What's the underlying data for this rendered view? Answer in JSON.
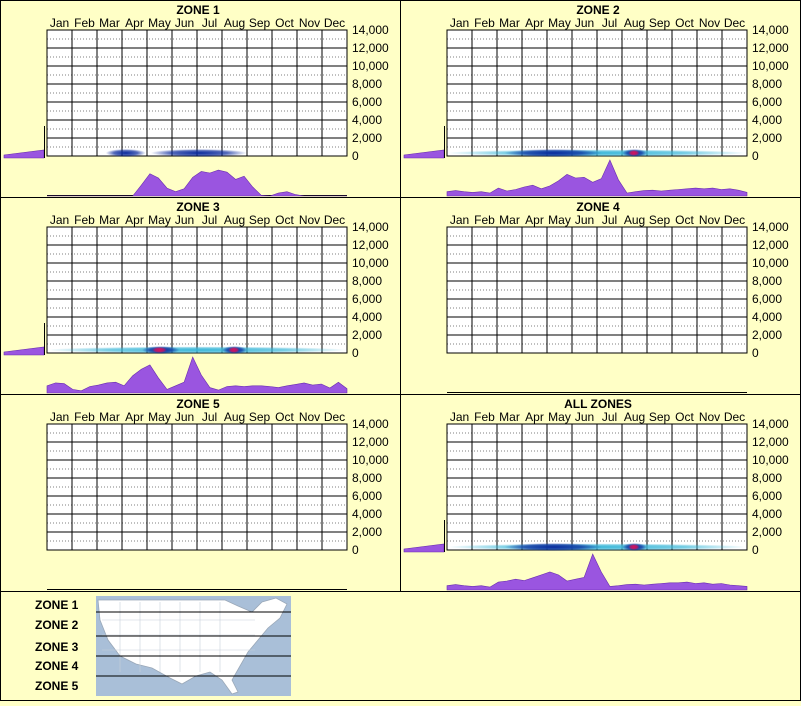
{
  "colors": {
    "background": "#ffffc6",
    "fill_purple": "#9a55e0",
    "heat_blue": "#0a2a9c",
    "heat_cyan": "#3ab7d8",
    "heat_red": "#e0105a",
    "map_water": "#a9bfd8",
    "map_land": "#ffffff"
  },
  "months": [
    "Jan",
    "Feb",
    "Mar",
    "Apr",
    "May",
    "Jun",
    "Jul",
    "Aug",
    "Sep",
    "Oct",
    "Nov",
    "Dec"
  ],
  "elevation_ticks": [
    "14,000",
    "12,000",
    "10,000",
    "8,000",
    "6,000",
    "4,000",
    "2,000",
    "0"
  ],
  "chart_data": [
    {
      "type": "heatmap",
      "title": "ZONE 1",
      "ylim": [
        0,
        14000
      ],
      "x": [
        "Jan",
        "Feb",
        "Mar",
        "Apr",
        "May",
        "Jun",
        "Jul",
        "Aug",
        "Sep",
        "Oct",
        "Nov",
        "Dec"
      ],
      "seasonal_profile": [
        0,
        0,
        0,
        0,
        0,
        0,
        0,
        0,
        0,
        0,
        0,
        0.3,
        0.62,
        0.5,
        0.22,
        0.12,
        0.2,
        0.52,
        0.68,
        0.64,
        0.72,
        0.66,
        0.46,
        0.55,
        0.25,
        0.02,
        0,
        0.08,
        0.12,
        0.04,
        0,
        0,
        0,
        0,
        0,
        0
      ],
      "elevation_profile": [
        0.25,
        0.8,
        1.0,
        0.45,
        0.1,
        0.02,
        0,
        0,
        0,
        0,
        0,
        0,
        0,
        0,
        0
      ],
      "heat_spans": [
        [
          2.35,
          3.95,
          "blue"
        ],
        [
          4.15,
          8.0,
          "blue"
        ]
      ]
    },
    {
      "type": "heatmap",
      "title": "ZONE 2",
      "ylim": [
        0,
        14000
      ],
      "x": [
        "Jan",
        "Feb",
        "Mar",
        "Apr",
        "May",
        "Jun",
        "Jul",
        "Aug",
        "Sep",
        "Oct",
        "Nov",
        "Dec"
      ],
      "seasonal_profile": [
        0.12,
        0.15,
        0.12,
        0.1,
        0.12,
        0.08,
        0.22,
        0.14,
        0.18,
        0.25,
        0.3,
        0.2,
        0.28,
        0.42,
        0.6,
        0.5,
        0.52,
        0.38,
        0.48,
        1.0,
        0.45,
        0.08,
        0.12,
        0.15,
        0.16,
        0.14,
        0.16,
        0.18,
        0.2,
        0.22,
        0.2,
        0.22,
        0.18,
        0.2,
        0.16,
        0.1
      ],
      "elevation_profile": [
        0.2,
        1.0,
        0.7,
        0.3,
        0.08,
        0,
        0,
        0,
        0,
        0,
        0,
        0,
        0,
        0,
        0
      ],
      "heat_spans": [
        [
          0,
          12,
          "cyan"
        ],
        [
          2.3,
          6.2,
          "blue"
        ],
        [
          7.0,
          8.0,
          "blue"
        ],
        [
          7.25,
          7.7,
          "red"
        ]
      ]
    },
    {
      "type": "heatmap",
      "title": "ZONE 3",
      "ylim": [
        0,
        14000
      ],
      "x": [
        "Jan",
        "Feb",
        "Mar",
        "Apr",
        "May",
        "Jun",
        "Jul",
        "Aug",
        "Sep",
        "Oct",
        "Nov",
        "Dec"
      ],
      "seasonal_profile": [
        0.2,
        0.28,
        0.26,
        0.1,
        0.06,
        0.18,
        0.22,
        0.28,
        0.3,
        0.2,
        0.48,
        0.66,
        0.78,
        0.42,
        0.1,
        0.2,
        0.3,
        1.0,
        0.5,
        0.15,
        0.08,
        0.18,
        0.2,
        0.18,
        0.2,
        0.2,
        0.18,
        0.15,
        0.2,
        0.24,
        0.28,
        0.22,
        0.25,
        0.14,
        0.3,
        0.12
      ],
      "elevation_profile": [
        0.2,
        1.0,
        0.45,
        0.12,
        0.02,
        0,
        0,
        0,
        0,
        0,
        0,
        0,
        0,
        0,
        0
      ],
      "heat_spans": [
        [
          0,
          12,
          "cyan"
        ],
        [
          3.8,
          5.3,
          "blue"
        ],
        [
          4.2,
          4.8,
          "red"
        ],
        [
          7.0,
          8.0,
          "blue"
        ],
        [
          7.25,
          7.7,
          "red"
        ]
      ]
    },
    {
      "type": "heatmap",
      "title": "ZONE 4",
      "ylim": [
        0,
        14000
      ],
      "x": [
        "Jan",
        "Feb",
        "Mar",
        "Apr",
        "May",
        "Jun",
        "Jul",
        "Aug",
        "Sep",
        "Oct",
        "Nov",
        "Dec"
      ],
      "seasonal_profile": [],
      "elevation_profile": [],
      "heat_spans": []
    },
    {
      "type": "heatmap",
      "title": "ZONE 5",
      "ylim": [
        0,
        14000
      ],
      "x": [
        "Jan",
        "Feb",
        "Mar",
        "Apr",
        "May",
        "Jun",
        "Jul",
        "Aug",
        "Sep",
        "Oct",
        "Nov",
        "Dec"
      ],
      "seasonal_profile": [],
      "elevation_profile": [],
      "heat_spans": []
    },
    {
      "type": "heatmap",
      "title": "ALL ZONES",
      "ylim": [
        0,
        14000
      ],
      "x": [
        "Jan",
        "Feb",
        "Mar",
        "Apr",
        "May",
        "Jun",
        "Jul",
        "Aug",
        "Sep",
        "Oct",
        "Nov",
        "Dec"
      ],
      "seasonal_profile": [
        0.12,
        0.15,
        0.12,
        0.1,
        0.12,
        0.08,
        0.22,
        0.25,
        0.3,
        0.26,
        0.34,
        0.42,
        0.5,
        0.42,
        0.25,
        0.3,
        0.35,
        1.0,
        0.5,
        0.1,
        0.12,
        0.15,
        0.16,
        0.14,
        0.16,
        0.18,
        0.2,
        0.2,
        0.22,
        0.18,
        0.2,
        0.16,
        0.18,
        0.14,
        0.12,
        0.1
      ],
      "elevation_profile": [
        0.15,
        1.0,
        0.7,
        0.3,
        0.08,
        0,
        0,
        0,
        0,
        0,
        0,
        0,
        0,
        0,
        0
      ],
      "heat_spans": [
        [
          0,
          12,
          "cyan"
        ],
        [
          2.3,
          6.2,
          "blue"
        ],
        [
          7.0,
          8.0,
          "blue"
        ],
        [
          7.25,
          7.7,
          "red"
        ]
      ]
    }
  ],
  "legend": {
    "zones": [
      "ZONE 1",
      "ZONE 2",
      "ZONE 3",
      "ZONE 4",
      "ZONE 5"
    ]
  }
}
